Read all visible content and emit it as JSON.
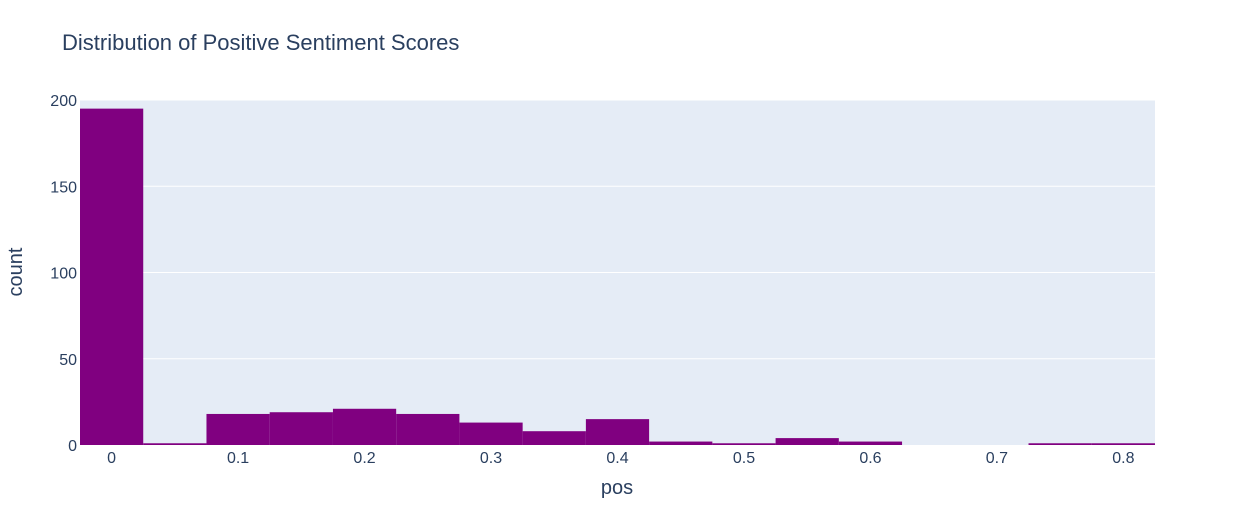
{
  "chart_data": {
    "type": "bar",
    "title": "Distribution of Positive Sentiment Scores",
    "xlabel": "pos",
    "ylabel": "count",
    "bin_width": 0.05,
    "xlim": [
      -0.025,
      0.825
    ],
    "ylim": [
      0,
      200
    ],
    "x_ticks": [
      0,
      0.1,
      0.2,
      0.3,
      0.4,
      0.5,
      0.6,
      0.7,
      0.8
    ],
    "x_tick_labels": [
      "0",
      "0.1",
      "0.2",
      "0.3",
      "0.4",
      "0.5",
      "0.6",
      "0.7",
      "0.8"
    ],
    "y_ticks": [
      0,
      50,
      100,
      150,
      200
    ],
    "y_tick_labels": [
      "0",
      "50",
      "100",
      "150",
      "200"
    ],
    "grid": true,
    "bin_centers": [
      0,
      0.05,
      0.1,
      0.15,
      0.2,
      0.25,
      0.3,
      0.35,
      0.4,
      0.45,
      0.5,
      0.55,
      0.6,
      0.65,
      0.7,
      0.75,
      0.8
    ],
    "values": [
      195,
      1,
      18,
      19,
      21,
      18,
      13,
      8,
      15,
      2,
      1,
      4,
      2,
      0,
      0,
      1,
      1
    ],
    "bar_color": "#800080",
    "plot_bg_color": "#e5ecf6",
    "grid_color": "#ffffff"
  }
}
